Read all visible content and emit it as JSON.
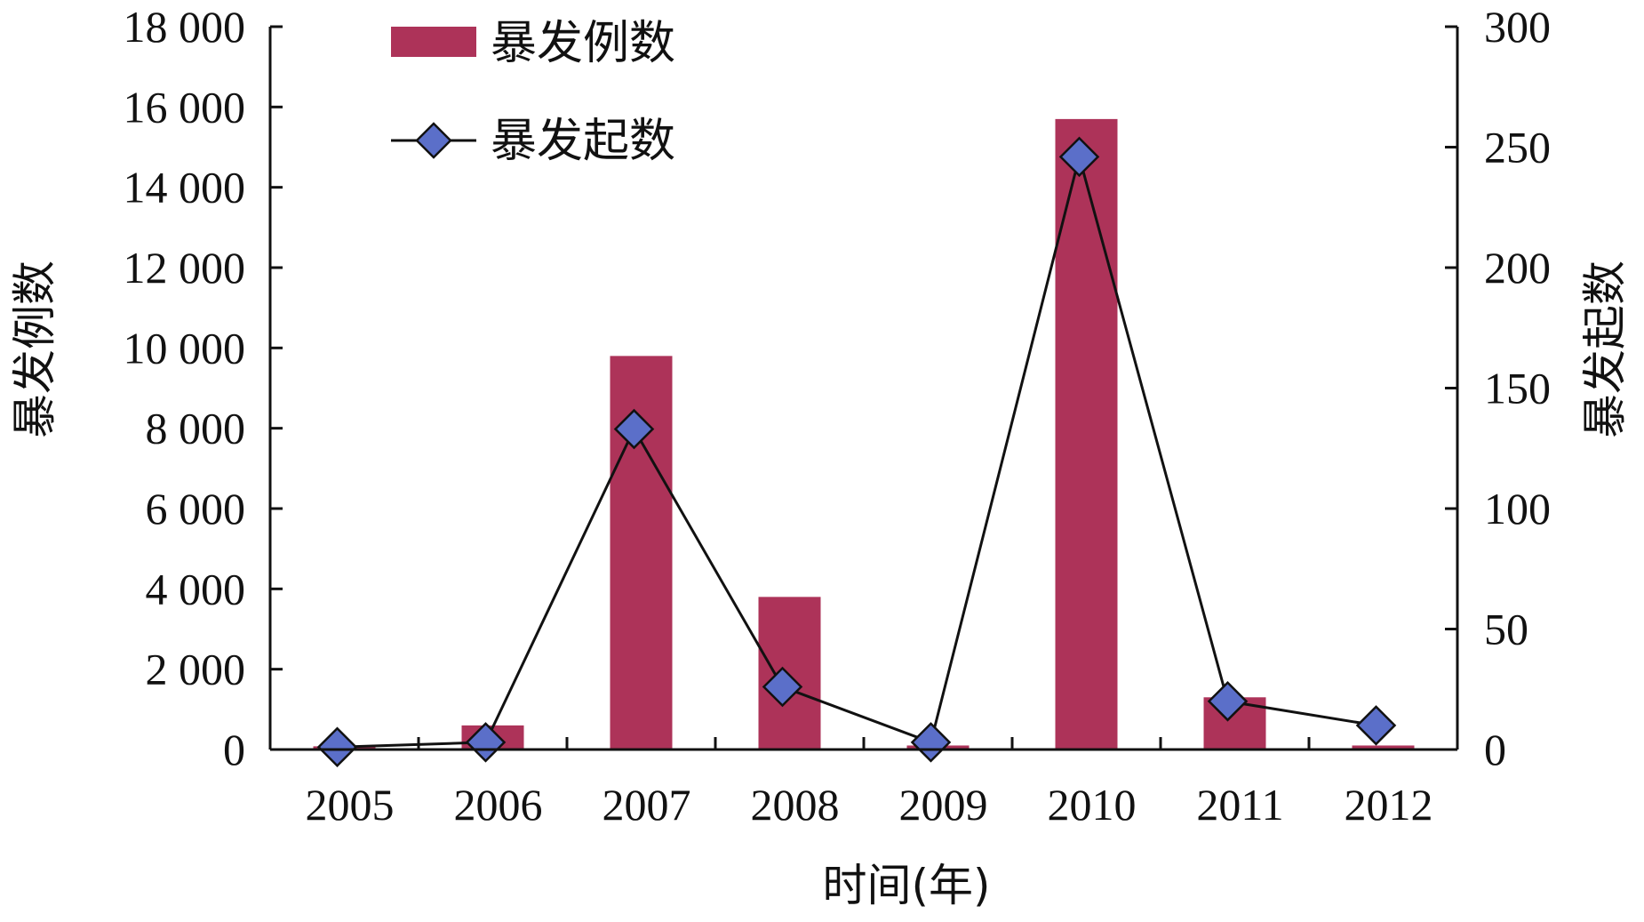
{
  "chart_data": {
    "type": "bar",
    "categories": [
      "2005",
      "2006",
      "2007",
      "2008",
      "2009",
      "2010",
      "2011",
      "2012"
    ],
    "x_tick_labels": [
      "2005",
      "2006",
      "2007",
      "2008",
      "2009",
      "2010",
      "2011",
      "2012"
    ],
    "xlabel": "时间(年)",
    "ylabel_left": "暴发例数",
    "ylabel_right": "暴发起数",
    "ylim_left": [
      0,
      18000
    ],
    "ylim_right": [
      0,
      300
    ],
    "y_left_ticks": [
      0,
      2000,
      4000,
      6000,
      8000,
      10000,
      12000,
      14000,
      16000,
      18000
    ],
    "y_left_tick_labels": [
      "0",
      "2 000",
      "4 000",
      "6 000",
      "8 000",
      "10 000",
      "12 000",
      "14 000",
      "16 000",
      "18 000"
    ],
    "y_right_ticks": [
      0,
      50,
      100,
      150,
      200,
      250,
      300
    ],
    "y_right_tick_labels": [
      "0",
      "50",
      "100",
      "150",
      "200",
      "250",
      "300"
    ],
    "grid": false,
    "legend_position": "top-left",
    "series": [
      {
        "name": "暴发例数",
        "kind": "bar",
        "axis": "left",
        "color": "#ad3359",
        "values": [
          80,
          600,
          9800,
          3800,
          100,
          15700,
          1300,
          100
        ]
      },
      {
        "name": "暴发起数",
        "kind": "line",
        "axis": "right",
        "line_color": "#111111",
        "marker": "diamond",
        "marker_color": "#5b6fc9",
        "values": [
          1,
          3,
          133,
          26,
          3,
          246,
          20,
          10
        ]
      }
    ]
  }
}
